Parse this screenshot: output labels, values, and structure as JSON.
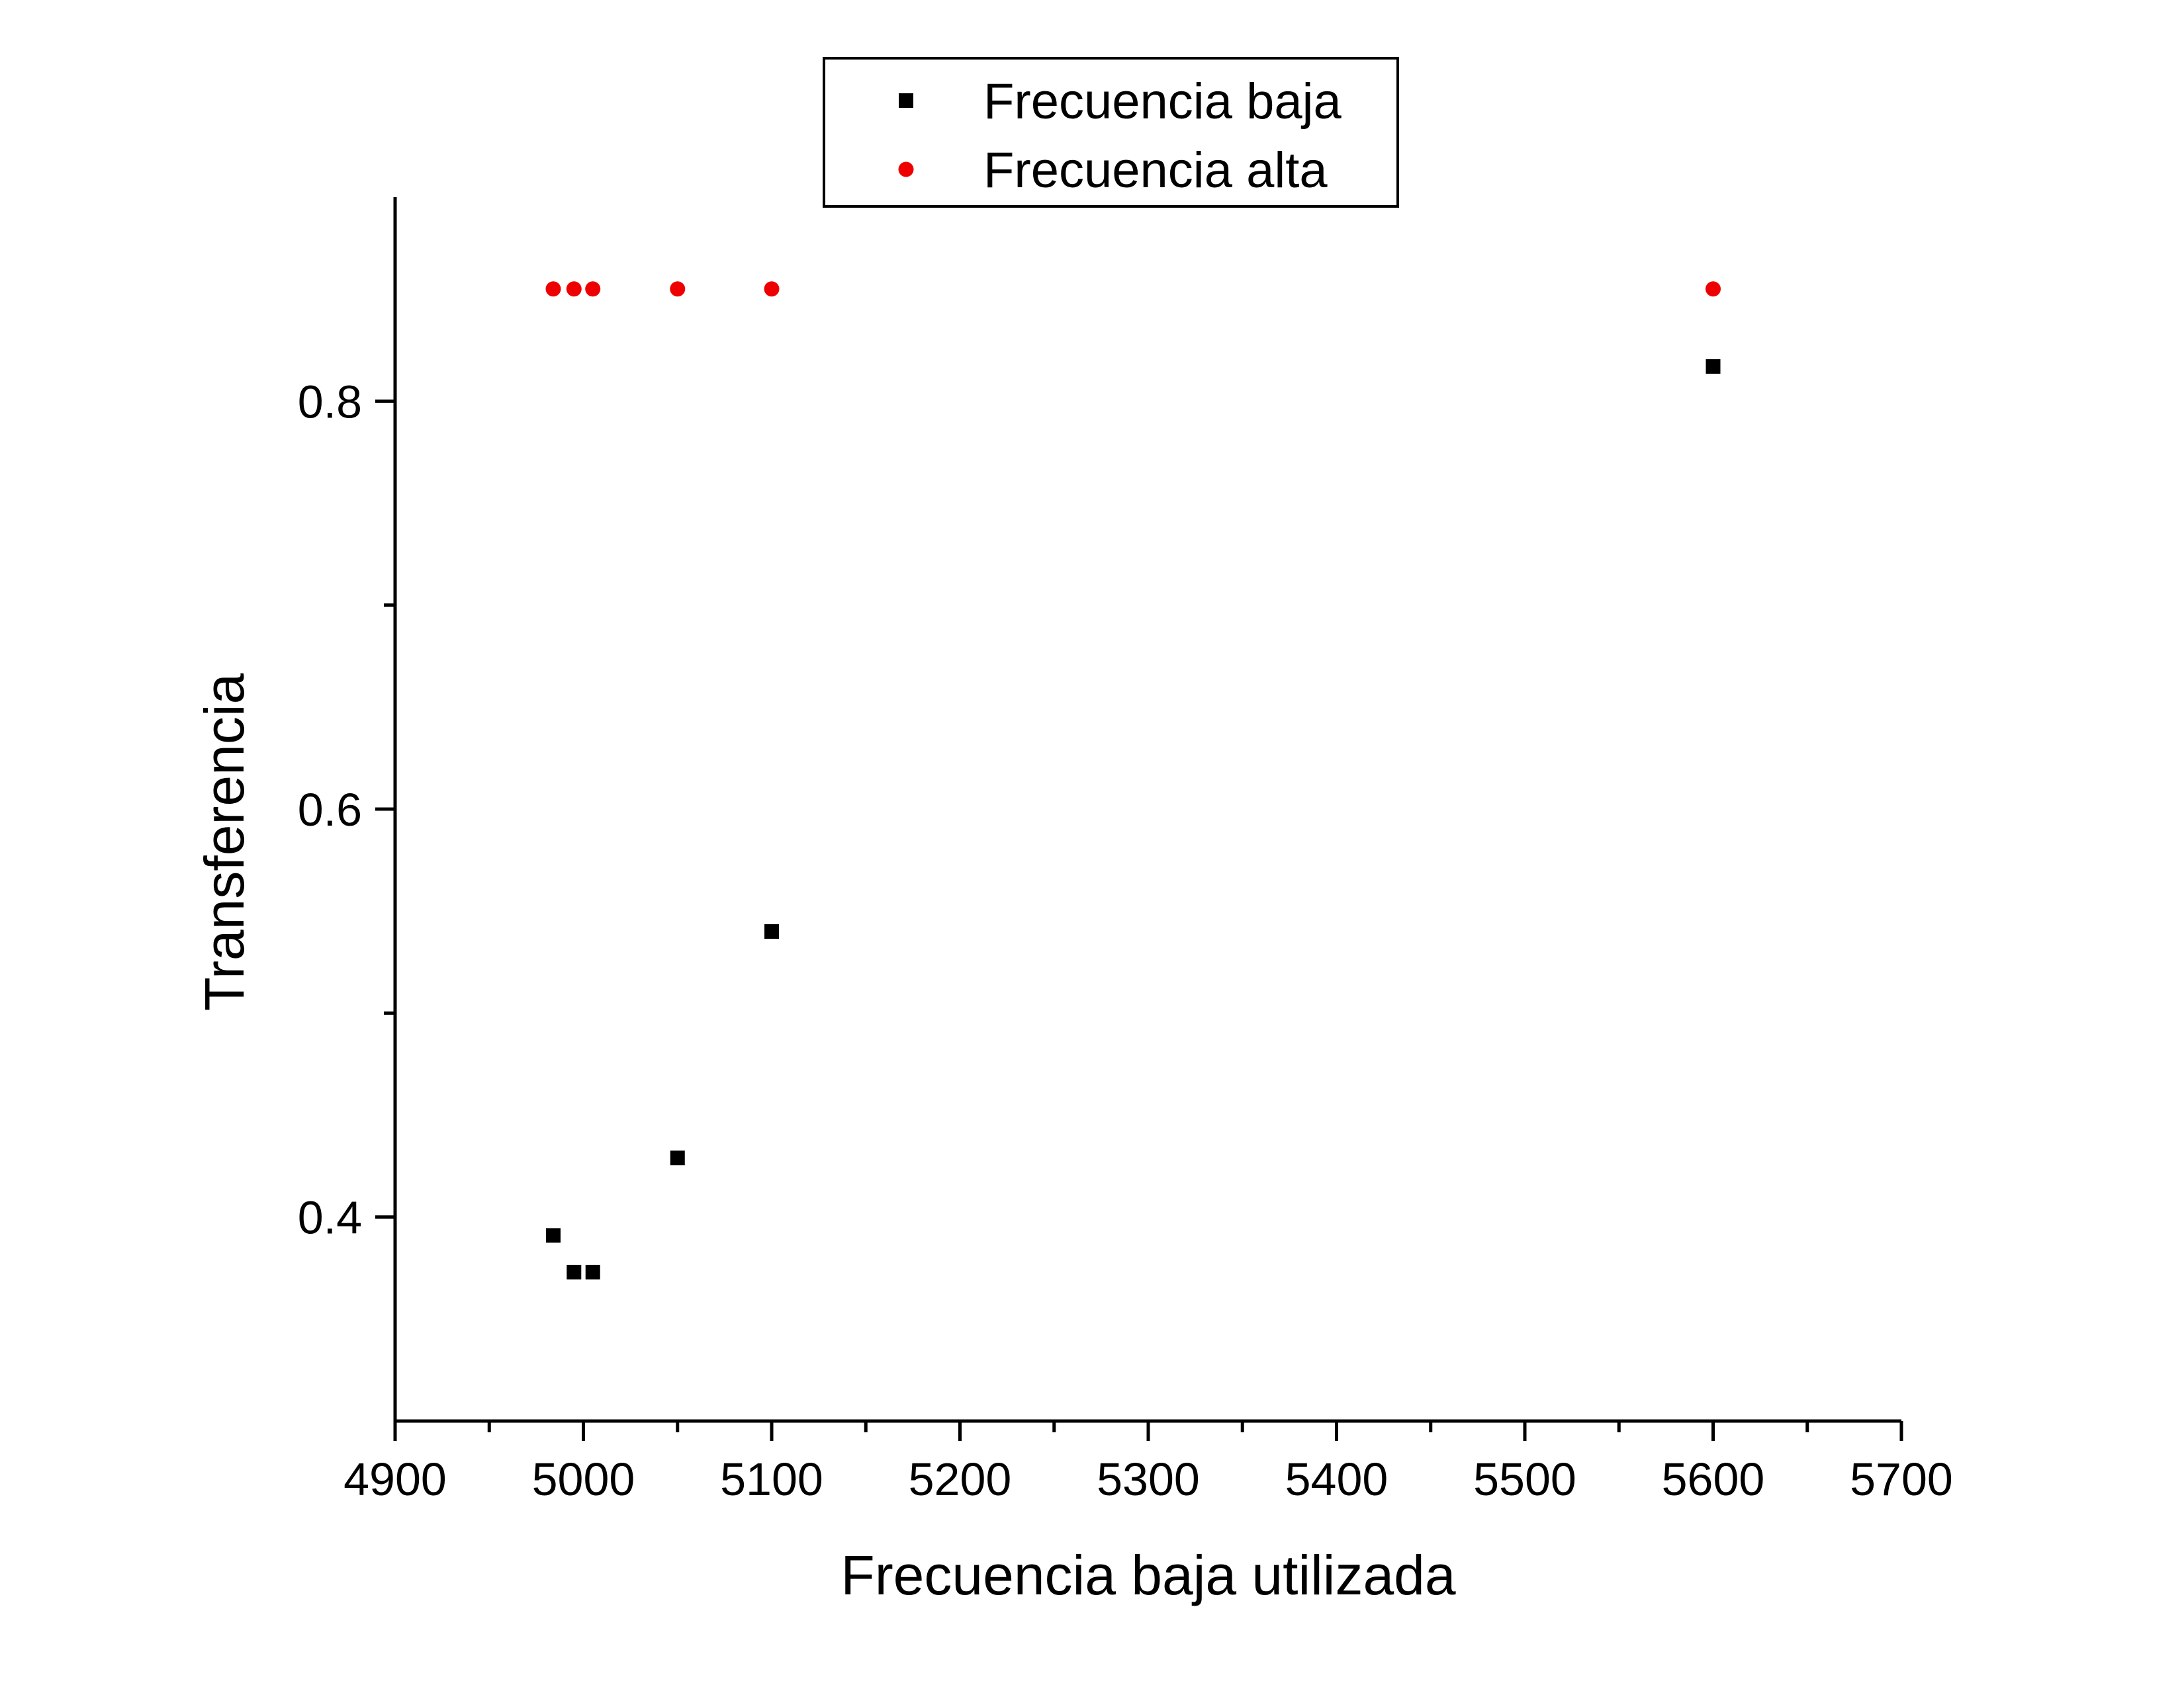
{
  "chart_data": {
    "type": "scatter",
    "xlabel": "Frecuencia baja utilizada",
    "ylabel": "Transferencia",
    "xlim": [
      4900,
      5700
    ],
    "ylim": [
      0.3,
      0.9
    ],
    "x_ticks": [
      4900,
      5000,
      5100,
      5200,
      5300,
      5400,
      5500,
      5600,
      5700
    ],
    "x_tick_labels": [
      "4900",
      "5000",
      "5100",
      "5200",
      "5300",
      "5400",
      "5500",
      "5600",
      "5700"
    ],
    "x_minor_ticks": [
      4950,
      5050,
      5150,
      5250,
      5350,
      5450,
      5550,
      5650
    ],
    "y_ticks": [
      0.4,
      0.6,
      0.8
    ],
    "y_tick_labels": [
      "0.4",
      "0.6",
      "0.8"
    ],
    "y_minor_ticks": [
      0.5,
      0.7
    ],
    "grid": false,
    "legend_position": "top-center",
    "series": [
      {
        "name": "Frecuencia baja",
        "marker": "square",
        "color": "#000000",
        "x": [
          4984,
          4995,
          5005,
          5050,
          5100,
          5600
        ],
        "y": [
          0.391,
          0.373,
          0.373,
          0.429,
          0.54,
          0.817
        ]
      },
      {
        "name": "Frecuencia alta",
        "marker": "circle",
        "color": "#ee0000",
        "x": [
          4984,
          4995,
          5005,
          5050,
          5100,
          5600
        ],
        "y": [
          0.855,
          0.855,
          0.855,
          0.855,
          0.855,
          0.855
        ]
      }
    ]
  }
}
